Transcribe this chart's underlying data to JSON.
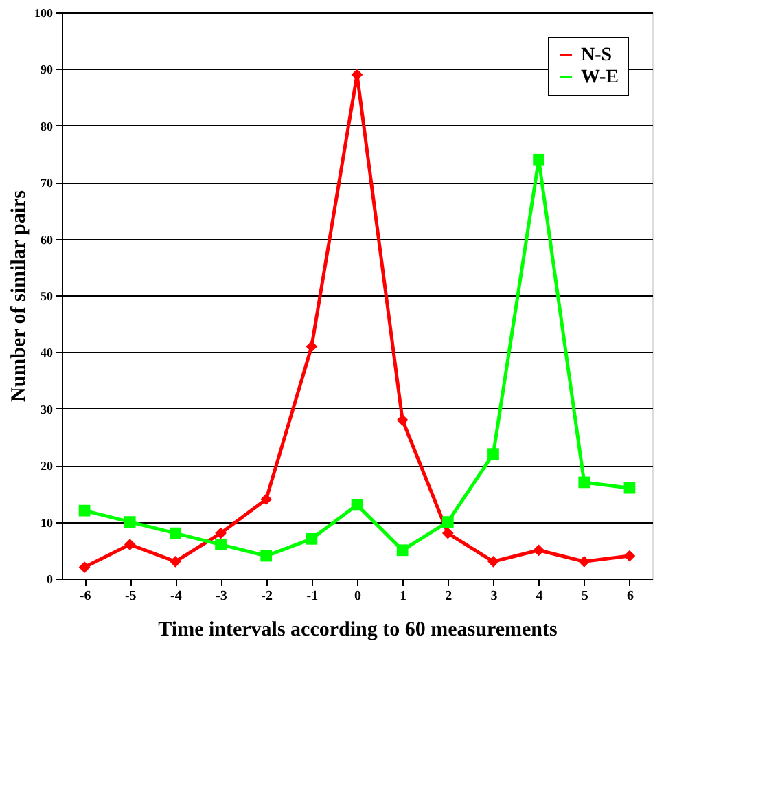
{
  "chart_data": {
    "type": "line",
    "xlabel": "Time intervals according to 60 measurements",
    "ylabel": "Number of similar pairs",
    "categories": [
      "-6",
      "-5",
      "-4",
      "-3",
      "-2",
      "-1",
      "0",
      "1",
      "2",
      "3",
      "4",
      "5",
      "6"
    ],
    "series": [
      {
        "name": "N-S",
        "color": "#ff0000",
        "marker": "diamond",
        "values": [
          2,
          6,
          3,
          8,
          14,
          41,
          89,
          28,
          8,
          3,
          5,
          3,
          4
        ]
      },
      {
        "name": "W-E",
        "color": "#00ff00",
        "marker": "square",
        "values": [
          12,
          10,
          8,
          6,
          4,
          7,
          13,
          5,
          10,
          22,
          74,
          17,
          16
        ]
      }
    ],
    "ylim": [
      0,
      100
    ],
    "yticks": [
      0,
      10,
      20,
      30,
      40,
      50,
      60,
      70,
      80,
      90,
      100
    ],
    "grid": "y",
    "legend": "top right"
  }
}
